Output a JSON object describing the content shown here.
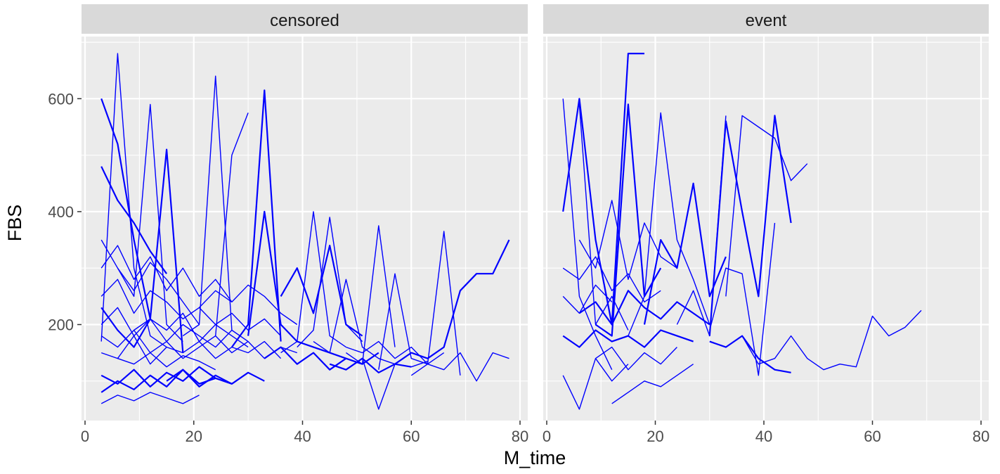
{
  "chart_data": {
    "type": "line",
    "xlabel": "M_time",
    "ylabel": "FBS",
    "xlim": [
      0,
      80
    ],
    "ylim": [
      30,
      710
    ],
    "x_ticks": [
      0,
      20,
      40,
      60,
      80
    ],
    "y_ticks": [
      200,
      400,
      600
    ],
    "line_color": "#0000ff",
    "panel_background": "#ebebeb",
    "strip_background": "#d9d9d9",
    "grid": true,
    "facet_by": "status",
    "panels": [
      {
        "label": "censored",
        "series": [
          {
            "x": [
              3,
              6,
              9,
              12
            ],
            "y": [
              600,
              520,
              350,
              210
            ]
          },
          {
            "x": [
              3,
              6,
              9,
              12,
              15
            ],
            "y": [
              170,
              680,
              300,
              180,
              160
            ]
          },
          {
            "x": [
              6,
              9,
              12,
              15,
              18
            ],
            "y": [
              300,
              250,
              590,
              200,
              170
            ]
          },
          {
            "x": [
              3,
              6,
              9,
              12,
              15,
              18
            ],
            "y": [
              230,
              190,
              160,
              210,
              510,
              150
            ]
          },
          {
            "x": [
              18,
              21,
              24,
              27
            ],
            "y": [
              180,
              200,
              640,
              190
            ]
          },
          {
            "x": [
              24,
              27,
              30
            ],
            "y": [
              180,
              500,
              575
            ]
          },
          {
            "x": [
              27,
              30,
              33,
              36
            ],
            "y": [
              160,
              200,
              615,
              170
            ]
          },
          {
            "x": [
              3,
              6,
              9,
              12,
              15,
              18,
              21,
              24,
              27,
              30,
              33,
              36
            ],
            "y": [
              150,
              140,
              180,
              130,
              160,
              150,
              170,
              140,
              160,
              150,
              170,
              140
            ]
          },
          {
            "x": [
              3,
              6,
              9,
              12,
              15,
              18,
              21,
              24,
              27,
              30,
              33,
              36
            ],
            "y": [
              250,
              280,
              220,
              260,
              240,
              210,
              230,
              200,
              220,
              190,
              210,
              180
            ]
          },
          {
            "x": [
              3,
              6,
              9,
              12,
              15,
              18,
              21,
              24,
              27
            ],
            "y": [
              110,
              95,
              120,
              90,
              115,
              100,
              125,
              105,
              95
            ]
          },
          {
            "x": [
              3,
              6,
              9,
              12,
              15,
              18,
              21
            ],
            "y": [
              350,
              300,
              260,
              310,
              280,
              240,
              200
            ]
          },
          {
            "x": [
              3,
              6,
              9,
              12,
              15,
              18,
              21,
              24,
              27,
              30
            ],
            "y": [
              200,
              230,
              180,
              210,
              190,
              220,
              170,
              200,
              180,
              160
            ]
          },
          {
            "x": [
              3,
              6,
              9,
              12,
              15,
              18,
              21,
              24
            ],
            "y": [
              80,
              100,
              85,
              110,
              90,
              120,
              95,
              105
            ]
          },
          {
            "x": [
              3,
              6,
              9,
              12,
              15,
              18,
              21,
              24,
              27,
              30,
              33,
              36,
              39
            ],
            "y": [
              180,
              160,
              190,
              150,
              170,
              140,
              160,
              180,
              150,
              170,
              140,
              160,
              150
            ]
          },
          {
            "x": [
              3,
              6,
              9,
              12,
              15,
              18,
              21,
              24,
              27
            ],
            "y": [
              300,
              340,
              280,
              320,
              260,
              300,
              250,
              280,
              240
            ]
          },
          {
            "x": [
              3,
              6,
              9,
              12,
              15
            ],
            "y": [
              480,
              420,
              380,
              330,
              290
            ]
          },
          {
            "x": [
              6,
              9,
              12,
              15,
              18,
              21,
              24
            ],
            "y": [
              140,
              130,
              150,
              125,
              145,
              135,
              120
            ]
          },
          {
            "x": [
              21,
              24,
              27,
              30,
              33,
              36,
              39
            ],
            "y": [
              230,
              260,
              240,
              270,
              250,
              220,
              200
            ]
          },
          {
            "x": [
              30,
              33,
              36,
              39,
              42,
              45,
              48
            ],
            "y": [
              180,
              400,
              200,
              170,
              160,
              150,
              140
            ]
          },
          {
            "x": [
              36,
              39,
              42,
              45,
              48
            ],
            "y": [
              150,
              170,
              400,
              180,
              160
            ]
          },
          {
            "x": [
              39,
              42,
              45,
              48,
              51
            ],
            "y": [
              160,
              190,
              390,
              200,
              170
            ]
          },
          {
            "x": [
              33,
              36,
              39,
              42,
              45,
              48,
              51,
              54
            ],
            "y": [
              140,
              160,
              130,
              150,
              120,
              140,
              130,
              150
            ]
          },
          {
            "x": [
              42,
              45,
              48,
              51,
              54,
              57
            ],
            "y": [
              170,
              150,
              280,
              160,
              140,
              130
            ]
          },
          {
            "x": [
              48,
              51,
              54,
              57
            ],
            "y": [
              150,
              130,
              375,
              160
            ]
          },
          {
            "x": [
              45,
              48,
              51,
              54,
              57,
              60
            ],
            "y": [
              130,
              120,
              140,
              115,
              130,
              125
            ]
          },
          {
            "x": [
              51,
              54,
              57,
              60,
              63
            ],
            "y": [
              140,
              50,
              130,
              125,
              135
            ]
          },
          {
            "x": [
              54,
              57,
              60,
              63,
              66,
              69
            ],
            "y": [
              120,
              290,
              140,
              130,
              365,
              110
            ]
          },
          {
            "x": [
              57,
              60,
              63,
              66,
              69,
              72,
              75,
              78
            ],
            "y": [
              130,
              150,
              140,
              160,
              260,
              290,
              290,
              350
            ]
          },
          {
            "x": [
              60,
              63,
              66,
              69,
              72,
              75,
              78
            ],
            "y": [
              110,
              130,
              120,
              150,
              100,
              150,
              140
            ]
          },
          {
            "x": [
              48,
              51,
              54,
              57,
              60,
              63,
              66
            ],
            "y": [
              160,
              150,
              170,
              140,
              160,
              130,
              150
            ]
          },
          {
            "x": [
              36,
              39,
              42,
              45,
              48,
              51
            ],
            "y": [
              250,
              300,
              220,
              340,
              200,
              180
            ]
          },
          {
            "x": [
              3,
              6,
              9,
              12,
              15,
              18,
              21
            ],
            "y": [
              60,
              75,
              65,
              80,
              70,
              60,
              75
            ]
          },
          {
            "x": [
              9,
              12,
              15,
              18,
              21,
              24,
              27,
              30
            ],
            "y": [
              190,
              210,
              170,
              200,
              180,
              160,
              190,
              170
            ]
          },
          {
            "x": [
              15,
              18,
              21,
              24,
              27,
              30,
              33
            ],
            "y": [
              100,
              120,
              90,
              110,
              95,
              115,
              100
            ]
          }
        ]
      },
      {
        "label": "event",
        "series": [
          {
            "x": [
              3,
              6,
              9,
              12,
              15,
              18
            ],
            "y": [
              400,
              600,
              350,
              200,
              680,
              680
            ]
          },
          {
            "x": [
              3,
              6,
              9,
              12
            ],
            "y": [
              600,
              250,
              180,
              120
            ]
          },
          {
            "x": [
              6,
              9,
              12,
              15
            ],
            "y": [
              590,
              200,
              250,
              190
            ]
          },
          {
            "x": [
              9,
              12,
              15,
              18,
              21
            ],
            "y": [
              200,
              180,
              590,
              250,
              300
            ]
          },
          {
            "x": [
              15,
              18,
              21,
              24,
              27,
              30
            ],
            "y": [
              180,
              250,
              575,
              350,
              280,
              200
            ]
          },
          {
            "x": [
              24,
              27,
              30,
              33
            ],
            "y": [
              200,
              260,
              180,
              570
            ]
          },
          {
            "x": [
              30,
              33,
              36,
              39,
              42,
              45
            ],
            "y": [
              180,
              560,
              400,
              250,
              570,
              380
            ]
          },
          {
            "x": [
              33,
              36,
              39,
              42,
              45,
              48
            ],
            "y": [
              250,
              570,
              550,
              530,
              455,
              485
            ]
          },
          {
            "x": [
              30,
              33,
              36,
              39,
              42
            ],
            "y": [
              190,
              300,
              290,
              110,
              380
            ]
          },
          {
            "x": [
              3,
              6,
              9,
              12,
              15,
              18,
              21,
              24,
              27
            ],
            "y": [
              180,
              160,
              190,
              170,
              180,
              160,
              190,
              180,
              170
            ]
          },
          {
            "x": [
              3,
              6,
              9,
              12,
              15,
              18,
              21
            ],
            "y": [
              300,
              280,
              320,
              260,
              290,
              240,
              260
            ]
          },
          {
            "x": [
              3,
              6,
              9,
              12,
              15
            ],
            "y": [
              110,
              50,
              140,
              100,
              130
            ]
          },
          {
            "x": [
              6,
              9,
              12,
              15,
              18,
              21,
              24,
              27,
              30
            ],
            "y": [
              220,
              240,
              200,
              260,
              230,
              210,
              240,
              220,
              200
            ]
          },
          {
            "x": [
              9,
              12,
              15,
              18,
              21,
              24
            ],
            "y": [
              140,
              160,
              120,
              150,
              130,
              160
            ]
          },
          {
            "x": [
              36,
              39,
              42,
              45,
              48,
              51,
              54,
              57,
              60,
              63,
              66,
              69
            ],
            "y": [
              180,
              130,
              140,
              180,
              140,
              120,
              130,
              125,
              215,
              180,
              195,
              225
            ]
          },
          {
            "x": [
              30,
              33,
              36,
              39,
              42,
              45
            ],
            "y": [
              170,
              160,
              180,
              140,
              120,
              115
            ]
          },
          {
            "x": [
              12,
              15,
              18,
              21,
              24,
              27
            ],
            "y": [
              60,
              80,
              100,
              90,
              110,
              130
            ]
          },
          {
            "x": [
              6,
              9,
              12,
              15,
              18,
              21,
              24
            ],
            "y": [
              350,
              300,
              420,
              280,
              380,
              320,
              300
            ]
          },
          {
            "x": [
              18,
              21,
              24,
              27,
              30,
              33
            ],
            "y": [
              200,
              350,
              300,
              450,
              250,
              320
            ]
          },
          {
            "x": [
              3,
              6,
              9,
              12
            ],
            "y": [
              250,
              220,
              270,
              240
            ]
          }
        ]
      }
    ]
  }
}
